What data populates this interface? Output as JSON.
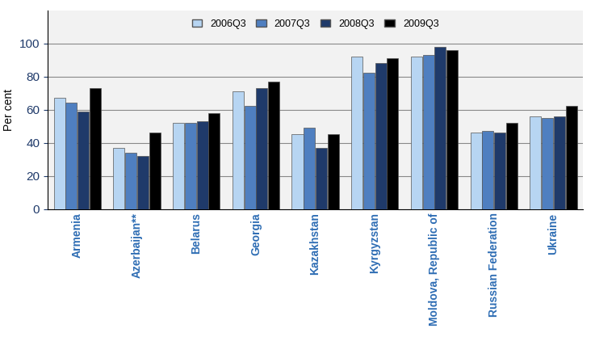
{
  "chart_data": {
    "type": "bar",
    "y_label": "Per cent",
    "categories": [
      "Armenia",
      "Azerbaijan**",
      "Belarus",
      "Georgia",
      "Kazakhstan",
      "Kyrgyzstan",
      "Moldova, Republic of",
      "Russian Federation",
      "Ukraine"
    ],
    "series": [
      {
        "name": "2006Q3",
        "color": "#b7d5f2",
        "values": [
          67,
          37,
          52,
          71,
          45,
          92,
          92,
          46,
          56
        ]
      },
      {
        "name": "2007Q3",
        "color": "#4f7fc0",
        "values": [
          64,
          34,
          52,
          62,
          49,
          82,
          93,
          47,
          55
        ]
      },
      {
        "name": "2008Q3",
        "color": "#1f3a6a",
        "values": [
          59,
          32,
          53,
          73,
          37,
          88,
          98,
          46,
          56
        ]
      },
      {
        "name": "2009Q3",
        "color": "#000000",
        "values": [
          73,
          46,
          58,
          77,
          45,
          91,
          96,
          52,
          62
        ]
      }
    ],
    "ylim": [
      0,
      120
    ],
    "yticks": [
      0,
      20,
      40,
      60,
      80,
      100
    ],
    "grid": true,
    "legend": "upper center"
  }
}
